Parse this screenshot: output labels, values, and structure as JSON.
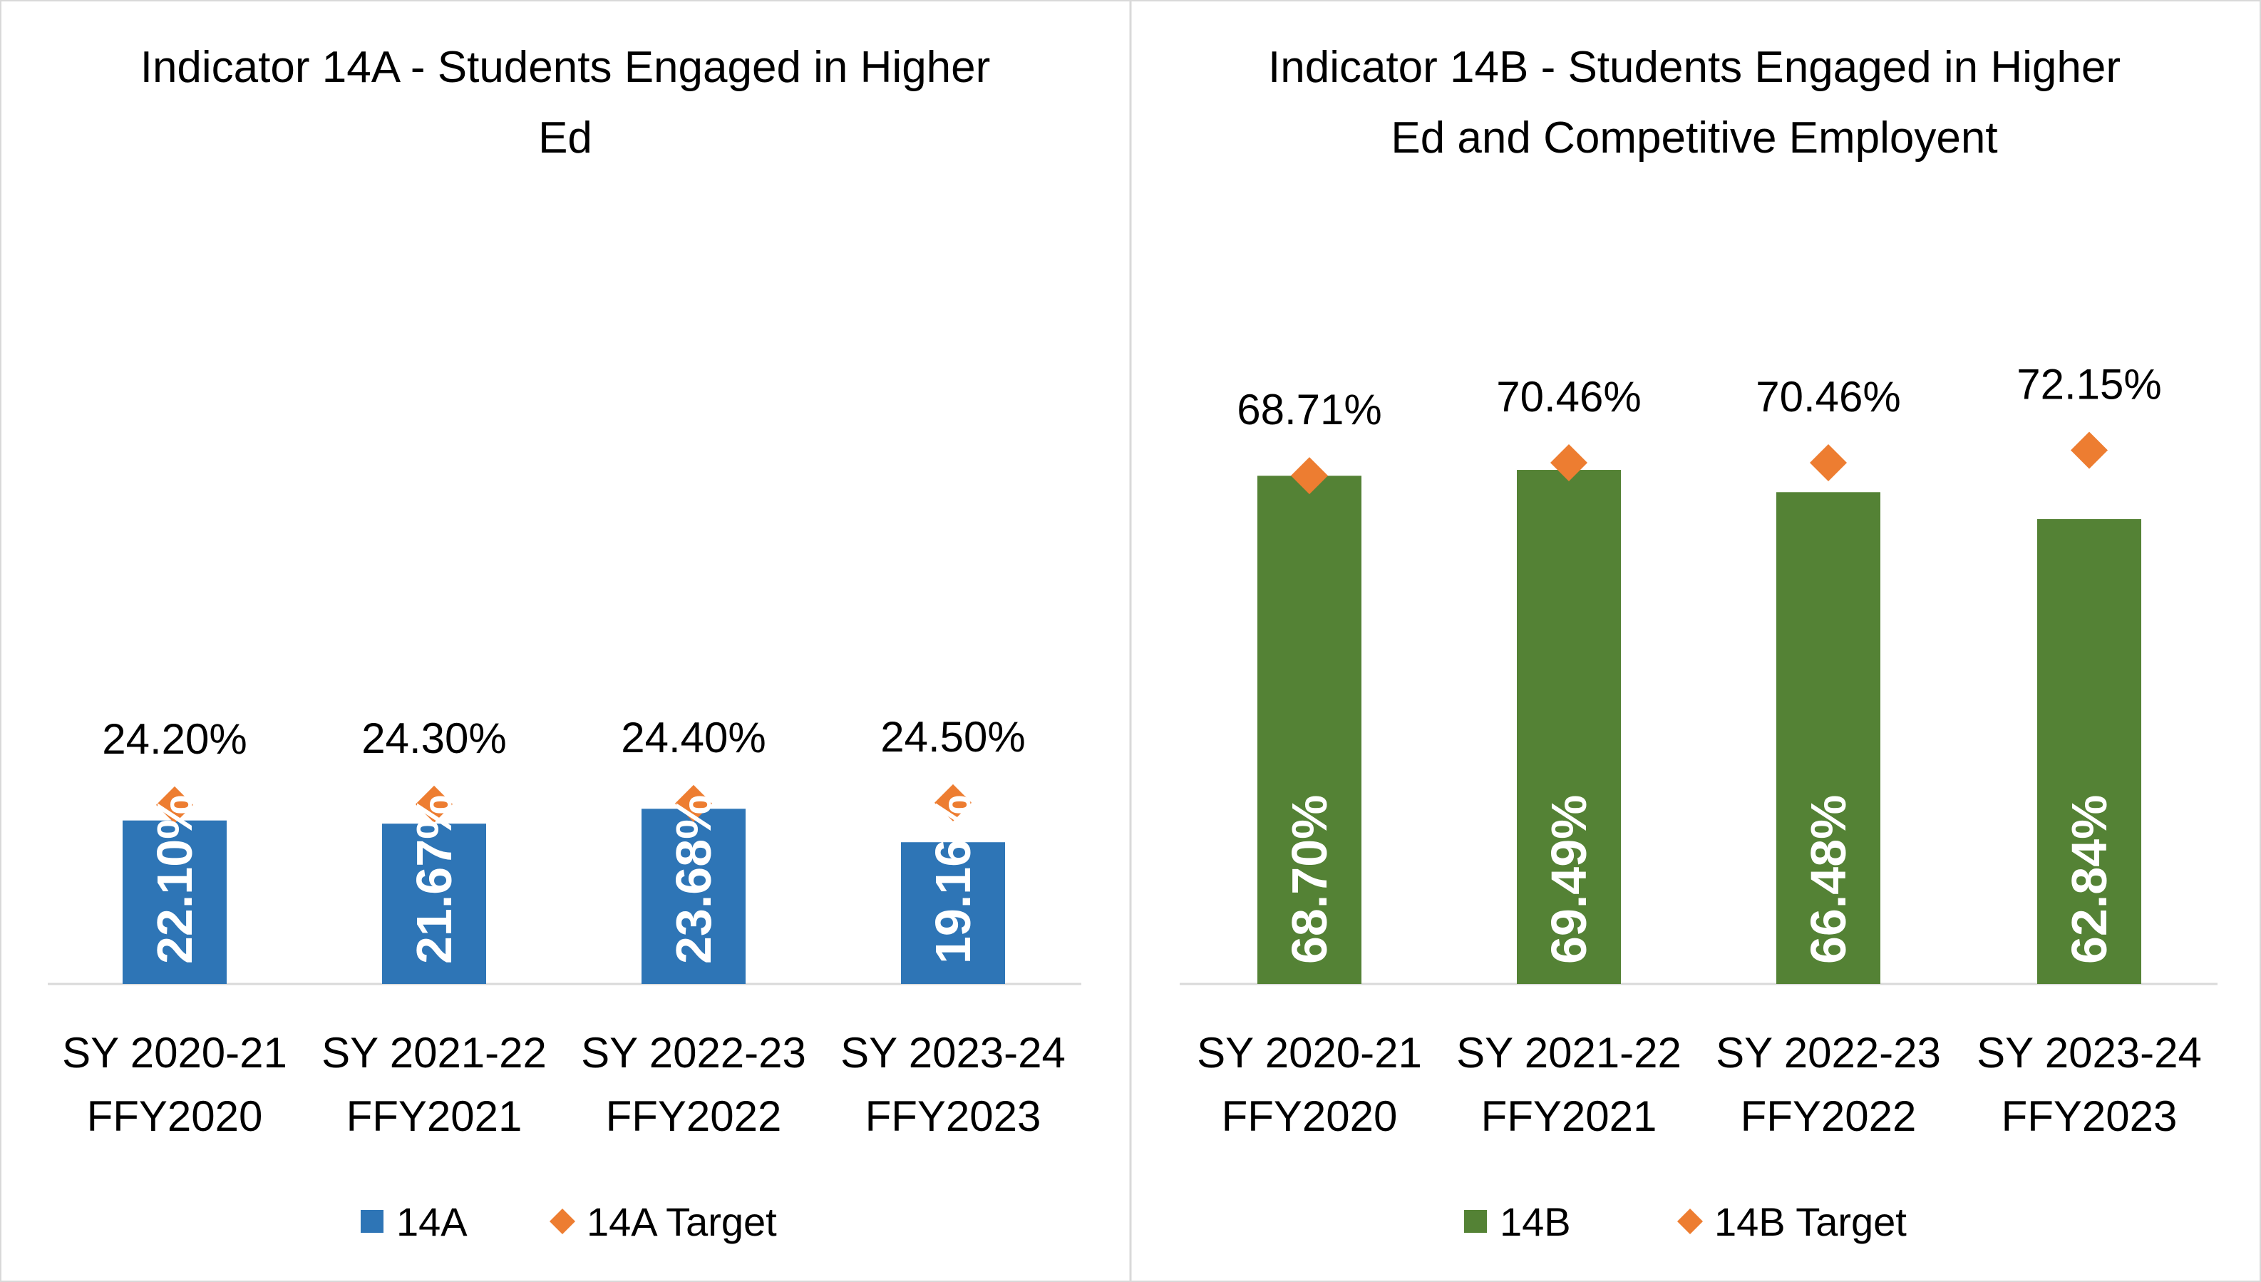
{
  "chart_data": [
    {
      "type": "bar",
      "title": "Indicator 14A - Students Engaged in Higher Ed",
      "categories": [
        [
          "SY 2020-21",
          "FFY2020"
        ],
        [
          "SY 2021-22",
          "FFY2021"
        ],
        [
          "SY 2022-23",
          "FFY2022"
        ],
        [
          "SY 2023-24",
          "FFY2023"
        ]
      ],
      "series": [
        {
          "name": "14A",
          "color": "#2e75b6",
          "values": [
            22.1,
            21.67,
            23.68,
            19.16
          ],
          "value_labels": [
            "22.10%",
            "21.67%",
            "23.68%",
            "19.16%"
          ]
        },
        {
          "name": "14A Target",
          "color": "#ed7d31",
          "marker": "diamond",
          "values": [
            24.2,
            24.3,
            24.4,
            24.5
          ],
          "value_labels": [
            "24.20%",
            "24.30%",
            "24.40%",
            "24.50%"
          ]
        }
      ],
      "ylim": [
        0,
        80
      ],
      "legend": "bottom"
    },
    {
      "type": "bar",
      "title": "Indicator 14B - Students Engaged in Higher Ed and Competitive Employent",
      "categories": [
        [
          "SY 2020-21",
          "FFY2020"
        ],
        [
          "SY 2021-22",
          "FFY2021"
        ],
        [
          "SY 2022-23",
          "FFY2022"
        ],
        [
          "SY 2023-24",
          "FFY2023"
        ]
      ],
      "series": [
        {
          "name": "14B",
          "color": "#548235",
          "values": [
            68.7,
            69.49,
            66.48,
            62.84
          ],
          "value_labels": [
            "68.70%",
            "69.49%",
            "66.48%",
            "62.84%"
          ]
        },
        {
          "name": "14B Target",
          "color": "#ed7d31",
          "marker": "diamond",
          "values": [
            68.71,
            70.46,
            70.46,
            72.15
          ],
          "value_labels": [
            "68.71%",
            "70.46%",
            "70.46%",
            "72.15%"
          ]
        }
      ],
      "ylim": [
        0,
        80
      ],
      "legend": "bottom"
    }
  ]
}
